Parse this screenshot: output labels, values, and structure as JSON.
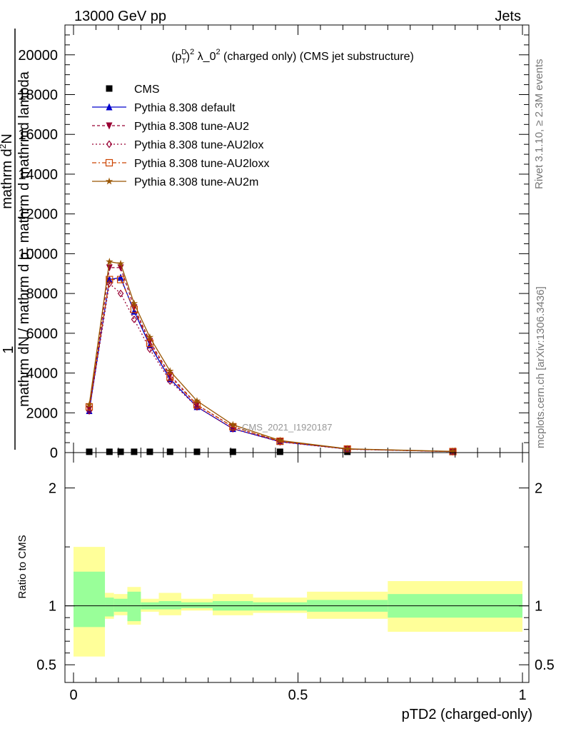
{
  "header": {
    "left": "13000 GeV pp",
    "right": "Jets"
  },
  "title": {
    "base": "(p",
    "sub": "T",
    "sup_d": "D",
    "rest": ")",
    "sq1": "2",
    "mid": " λ_0",
    "sq2": "2",
    "tail": " (charged only) (CMS jet substructure)"
  },
  "ylabel_main": {
    "one": "1",
    "num": "mathrm d",
    "num_sup": "2",
    "num2": "N",
    "den": "mathrm dN / mathrm d p",
    "den_sub": "T",
    "den2": " mathrm d mathrmd lambda"
  },
  "ylabel_ratio": "Ratio to CMS",
  "xlabel": "pTD2 (charged-only)",
  "side_text_top": "Rivet 3.1.10, ≥ 2.3M events",
  "side_text_bottom": "mcplots.cern.ch [arXiv:1306.3436]",
  "watermark": "CMS_2021_I1920187",
  "chart_data": {
    "type": "line",
    "xlim": [
      0,
      1
    ],
    "ylim": [
      0,
      21500
    ],
    "ratio_ylim": [
      0.35,
      2.3
    ],
    "x_ticks": [
      "0",
      "0.5",
      "1"
    ],
    "y_ticks": [
      "0",
      "2000",
      "4000",
      "6000",
      "8000",
      "10000",
      "12000",
      "14000",
      "16000",
      "18000",
      "20000"
    ],
    "ratio_ticks": [
      "0.5",
      "1",
      "2"
    ],
    "x": [
      0.035,
      0.08,
      0.105,
      0.135,
      0.17,
      0.215,
      0.275,
      0.355,
      0.46,
      0.61,
      0.845
    ],
    "cms": [
      40,
      40,
      40,
      40,
      40,
      40,
      40,
      40,
      40,
      40,
      40
    ],
    "series": [
      {
        "name": "CMS",
        "color": "#000000",
        "marker": "square",
        "values": [
          40,
          40,
          40,
          40,
          40,
          40,
          40,
          40,
          40,
          40,
          40
        ]
      },
      {
        "name": "Pythia 8.308 default",
        "color": "#0000cc",
        "marker": "triangle-up",
        "dash": "",
        "values": [
          2100,
          8700,
          8800,
          7100,
          5400,
          3700,
          2300,
          1200,
          550,
          180,
          50
        ]
      },
      {
        "name": "Pythia 8.308 tune-AU2",
        "color": "#990033",
        "marker": "triangle-down",
        "dash": "4,3",
        "values": [
          2200,
          9300,
          9300,
          7300,
          5600,
          3900,
          2400,
          1300,
          560,
          180,
          50
        ]
      },
      {
        "name": "Pythia 8.308 tune-AU2lox",
        "color": "#990033",
        "marker": "diamond-open",
        "dash": "2,3",
        "values": [
          2100,
          8500,
          8000,
          6700,
          5200,
          3600,
          2300,
          1200,
          540,
          170,
          50
        ]
      },
      {
        "name": "Pythia 8.308 tune-AU2loxx",
        "color": "#cc4400",
        "marker": "square-open",
        "dash": "6,3,2,3",
        "values": [
          2300,
          8700,
          8700,
          7200,
          5500,
          3800,
          2400,
          1300,
          570,
          180,
          50
        ]
      },
      {
        "name": "Pythia 8.308 tune-AU2m",
        "color": "#995500",
        "marker": "star",
        "dash": "",
        "values": [
          2400,
          9600,
          9500,
          7500,
          5800,
          4100,
          2600,
          1400,
          610,
          190,
          60
        ]
      }
    ],
    "ratio_bands": {
      "edges": [
        0.0,
        0.07,
        0.09,
        0.12,
        0.15,
        0.19,
        0.24,
        0.31,
        0.4,
        0.52,
        0.7,
        1.0
      ],
      "green_lo": [
        0.82,
        0.91,
        0.95,
        0.87,
        0.97,
        0.97,
        0.98,
        0.96,
        0.96,
        0.95,
        0.9
      ],
      "green_hi": [
        1.29,
        1.07,
        1.06,
        1.12,
        1.03,
        1.04,
        1.03,
        1.04,
        1.03,
        1.05,
        1.1
      ],
      "yellow_lo": [
        0.57,
        0.89,
        0.92,
        0.84,
        0.95,
        0.92,
        0.96,
        0.92,
        0.94,
        0.89,
        0.78
      ],
      "yellow_hi": [
        1.5,
        1.11,
        1.1,
        1.16,
        1.06,
        1.11,
        1.06,
        1.1,
        1.07,
        1.12,
        1.21
      ]
    },
    "band_colors": {
      "green": "#99ff99",
      "yellow": "#ffff99"
    },
    "legend_placement": "top-left"
  }
}
